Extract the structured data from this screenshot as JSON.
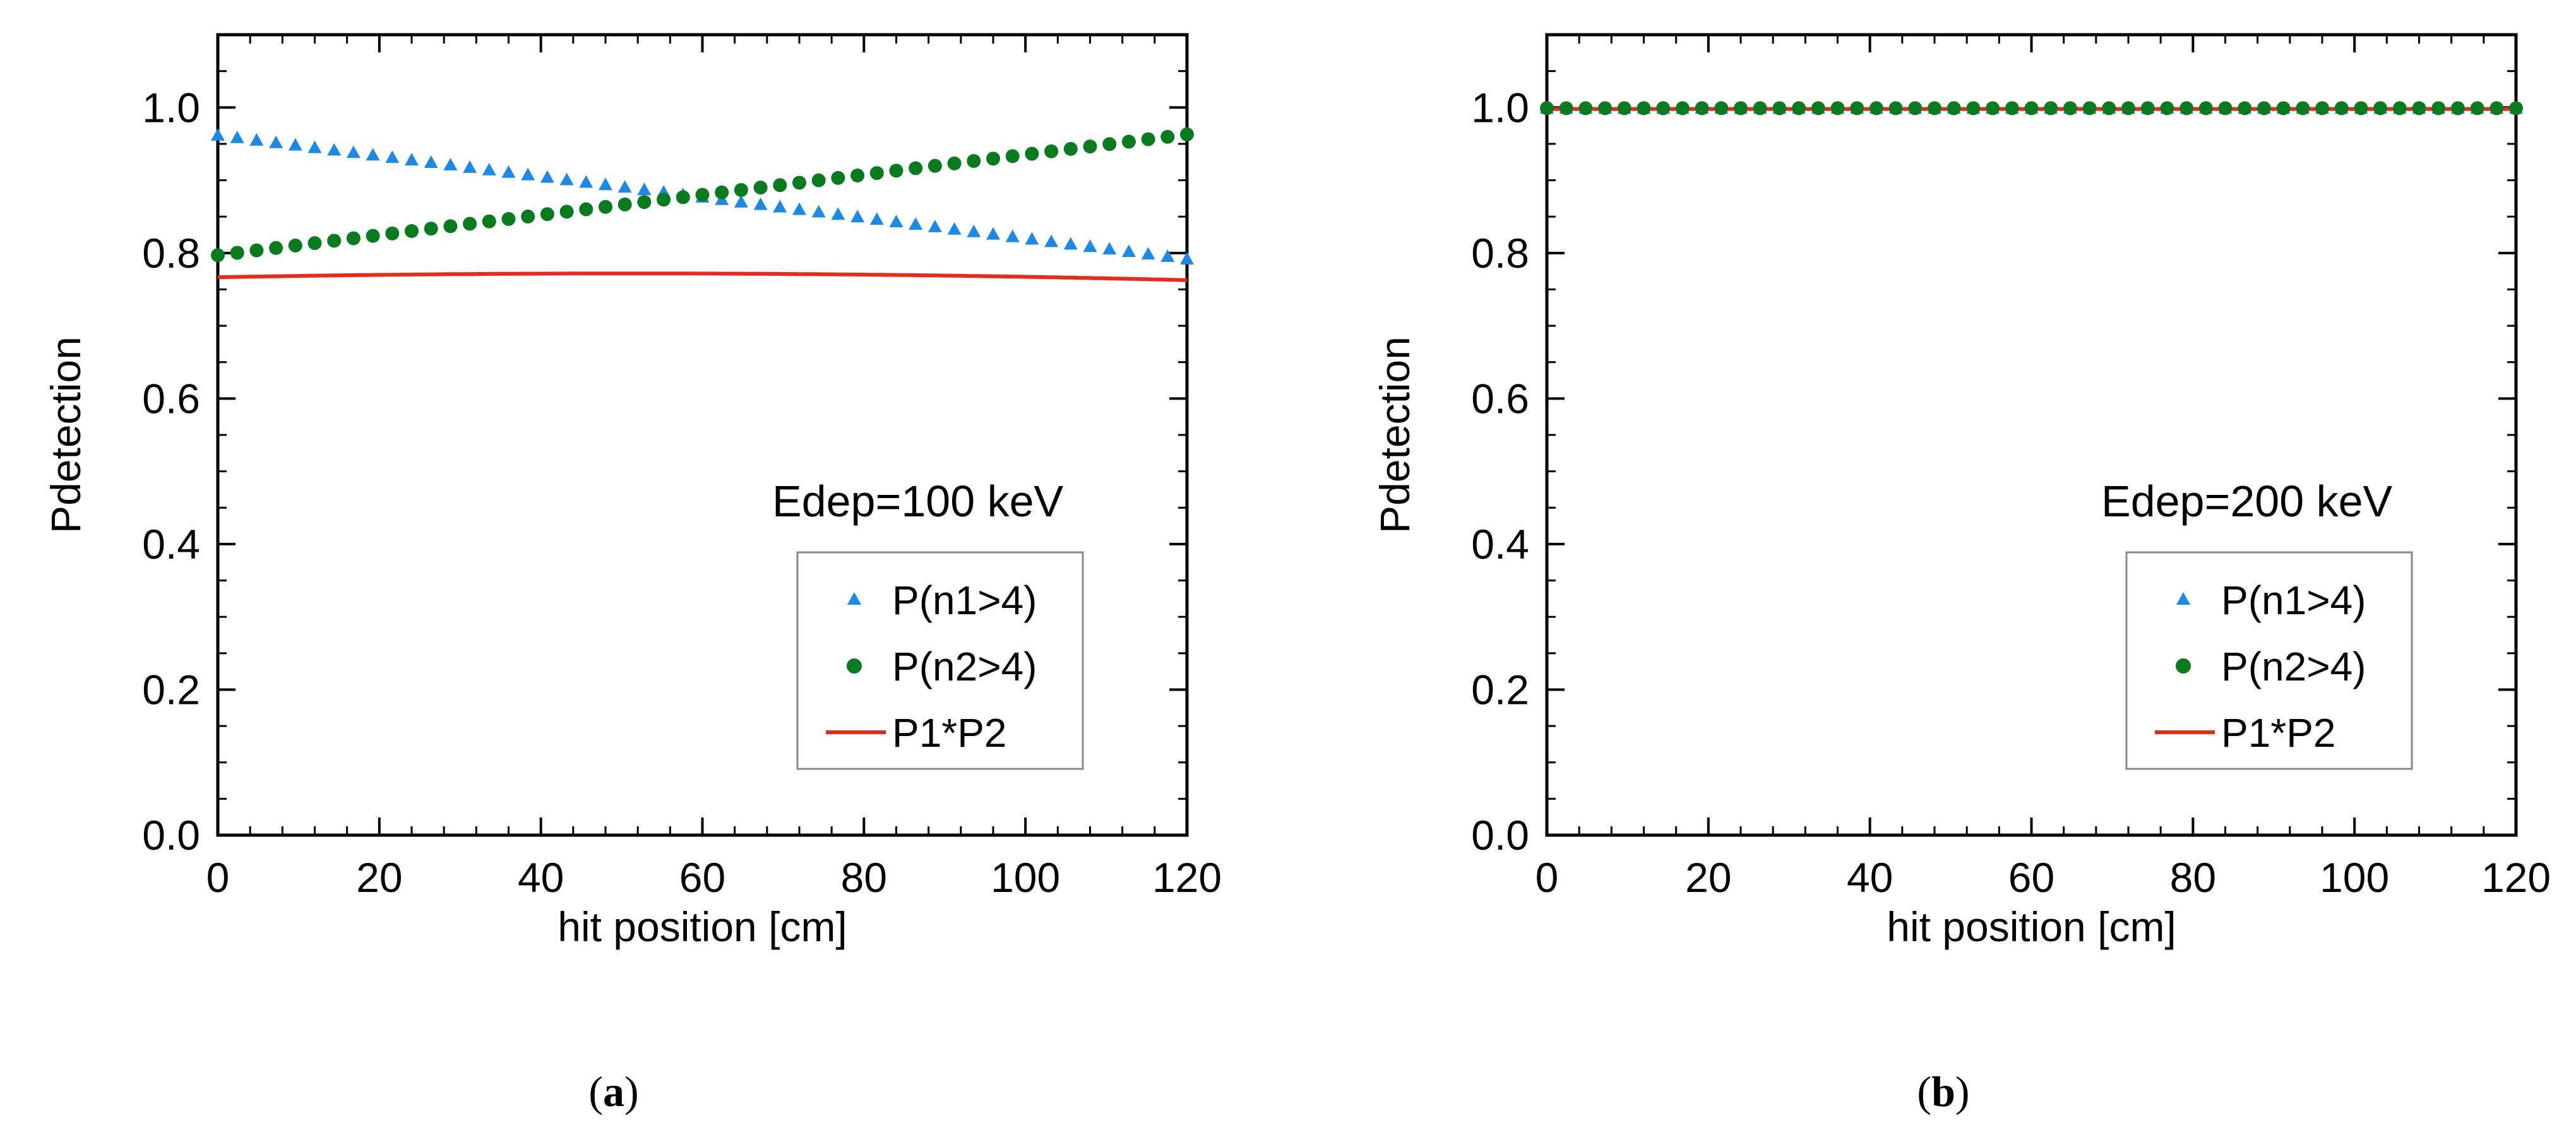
{
  "chart_data": [
    {
      "id": "a",
      "type": "line",
      "caption": "a",
      "title": "",
      "xlabel": "hit position [cm]",
      "ylabel": "Pdetection",
      "xlim": [
        0,
        120
      ],
      "ylim": [
        0,
        1.1
      ],
      "xticks": [
        0,
        20,
        40,
        60,
        80,
        100,
        120
      ],
      "yticks": [
        0.0,
        0.2,
        0.4,
        0.6,
        0.8,
        1.0
      ],
      "xtick_labels": [
        "0",
        "20",
        "40",
        "60",
        "80",
        "100",
        "120"
      ],
      "ytick_labels": [
        "0.0",
        "0.2",
        "0.4",
        "0.6",
        "0.8",
        "1.0"
      ],
      "annotation": "Edep=100 keV",
      "legend_position": "lower-right",
      "grid": false,
      "series": [
        {
          "name": "P(n1>4)",
          "marker": "triangle",
          "color": "#1e88e5",
          "x_start": 0,
          "x_end": 120,
          "x_step": 2.4,
          "y_start": 0.962,
          "y_end": 0.792
        },
        {
          "name": "P(n2>4)",
          "marker": "circle",
          "color": "#0a7a1f",
          "x_start": 0,
          "x_end": 120,
          "x_step": 2.4,
          "y_start": 0.797,
          "y_end": 0.963
        },
        {
          "name": "P1*P2",
          "marker": "line",
          "color": "#e8291c",
          "function": "product",
          "x_start": 0,
          "x_end": 120
        }
      ]
    },
    {
      "id": "b",
      "type": "line",
      "caption": "b",
      "title": "",
      "xlabel": "hit position [cm]",
      "ylabel": "Pdetection",
      "xlim": [
        0,
        120
      ],
      "ylim": [
        0,
        1.1
      ],
      "xticks": [
        0,
        20,
        40,
        60,
        80,
        100,
        120
      ],
      "yticks": [
        0.0,
        0.2,
        0.4,
        0.6,
        0.8,
        1.0
      ],
      "xtick_labels": [
        "0",
        "20",
        "40",
        "60",
        "80",
        "100",
        "120"
      ],
      "ytick_labels": [
        "0.0",
        "0.2",
        "0.4",
        "0.6",
        "0.8",
        "1.0"
      ],
      "annotation": "Edep=200 keV",
      "legend_position": "lower-right",
      "grid": false,
      "series": [
        {
          "name": "P(n1>4)",
          "marker": "triangle",
          "color": "#1e88e5",
          "x_start": 0,
          "x_end": 120,
          "x_step": 2.4,
          "y_start": 0.999,
          "y_end": 0.999
        },
        {
          "name": "P(n2>4)",
          "marker": "circle",
          "color": "#0a7a1f",
          "x_start": 0,
          "x_end": 120,
          "x_step": 2.4,
          "y_start": 0.999,
          "y_end": 0.999
        },
        {
          "name": "P1*P2",
          "marker": "line",
          "color": "#e8291c",
          "function": "product",
          "x_start": 0,
          "x_end": 120
        }
      ]
    }
  ]
}
